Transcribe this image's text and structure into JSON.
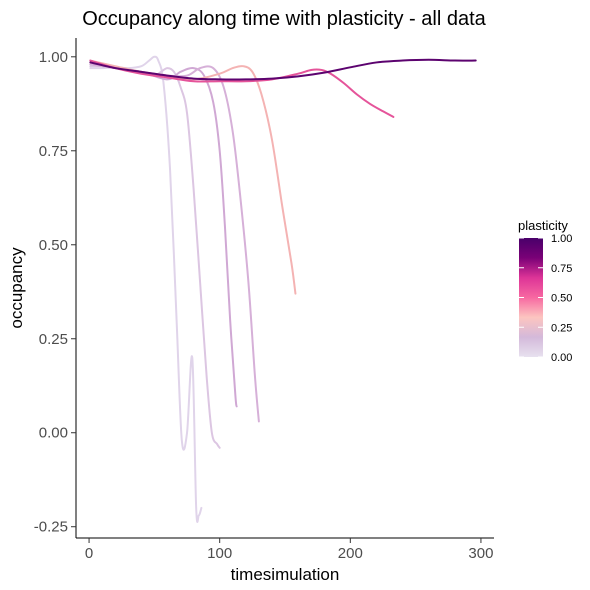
{
  "chart_data": {
    "type": "line",
    "title": "Occupancy along time with plasticity - all data",
    "xlabel": "timesimulation",
    "ylabel": "occupancy",
    "xlim": [
      -10,
      310
    ],
    "ylim": [
      -0.28,
      1.05
    ],
    "x_ticks": [
      0,
      100,
      200,
      300
    ],
    "y_ticks": [
      -0.25,
      0.0,
      0.25,
      0.5,
      0.75,
      1.0
    ],
    "y_tick_labels": [
      "-0.25",
      "0.00",
      "0.25",
      "0.50",
      "0.75",
      "1.00"
    ],
    "grid": false,
    "legend": {
      "title": "plasticity",
      "position": "right",
      "type": "colorbar",
      "range": [
        0,
        1
      ],
      "ticks": [
        0,
        0.25,
        0.5,
        0.75,
        1.0
      ],
      "tick_labels": [
        "0.00",
        "0.25",
        "0.50",
        "0.75",
        "1.00"
      ],
      "colors": [
        "#E7E1EF",
        "#D4B9DA",
        "#FCC5C0",
        "#F768A1",
        "#DD3497",
        "#7A0177",
        "#49006A"
      ]
    },
    "series": [
      {
        "plasticity": 0.1,
        "color": "#E0D4EA",
        "x": [
          1,
          10,
          20,
          30,
          40,
          46,
          50,
          53,
          57,
          62,
          67,
          71,
          75,
          79,
          82,
          84,
          86
        ],
        "y": [
          0.97,
          0.97,
          0.972,
          0.97,
          0.975,
          0.99,
          1.0,
          0.99,
          0.93,
          0.7,
          0.3,
          -0.02,
          0.0,
          0.2,
          -0.2,
          -0.22,
          -0.2
        ]
      },
      {
        "plasticity": 0.2,
        "color": "#DCC6E2",
        "x": [
          1,
          10,
          20,
          30,
          40,
          50,
          55,
          60,
          65,
          70,
          75,
          80,
          85,
          90,
          94,
          98,
          100
        ],
        "y": [
          0.975,
          0.975,
          0.97,
          0.965,
          0.96,
          0.95,
          0.96,
          0.97,
          0.96,
          0.92,
          0.85,
          0.65,
          0.4,
          0.15,
          0.0,
          -0.03,
          -0.04
        ]
      },
      {
        "plasticity": 0.3,
        "color": "#D0A8D4",
        "x": [
          1,
          20,
          40,
          60,
          70,
          80,
          88,
          95,
          100,
          104,
          108,
          112,
          113
        ],
        "y": [
          0.98,
          0.97,
          0.96,
          0.94,
          0.96,
          0.97,
          0.95,
          0.88,
          0.75,
          0.55,
          0.3,
          0.1,
          0.07
        ]
      },
      {
        "plasticity": 0.35,
        "color": "#D6B0D8",
        "x": [
          1,
          20,
          40,
          60,
          75,
          85,
          95,
          103,
          110,
          116,
          122,
          127,
          130
        ],
        "y": [
          0.98,
          0.97,
          0.96,
          0.95,
          0.95,
          0.97,
          0.97,
          0.92,
          0.8,
          0.62,
          0.4,
          0.15,
          0.03
        ]
      },
      {
        "plasticity": 0.4,
        "color": "#F4B3B3",
        "x": [
          1,
          20,
          40,
          60,
          80,
          100,
          110,
          118,
          125,
          132,
          140,
          148,
          155,
          158
        ],
        "y": [
          0.99,
          0.975,
          0.96,
          0.95,
          0.94,
          0.955,
          0.97,
          0.975,
          0.96,
          0.9,
          0.78,
          0.6,
          0.45,
          0.37
        ]
      },
      {
        "plasticity": 0.6,
        "color": "#E5549A",
        "x": [
          1,
          20,
          40,
          60,
          80,
          100,
          120,
          140,
          160,
          170,
          178,
          185,
          195,
          205,
          215,
          225,
          233
        ],
        "y": [
          0.99,
          0.97,
          0.955,
          0.945,
          0.935,
          0.935,
          0.935,
          0.94,
          0.955,
          0.965,
          0.965,
          0.955,
          0.93,
          0.9,
          0.875,
          0.855,
          0.84
        ]
      },
      {
        "plasticity": 1.0,
        "color": "#5C036F",
        "x": [
          1,
          20,
          40,
          60,
          80,
          100,
          120,
          140,
          160,
          180,
          200,
          220,
          240,
          260,
          280,
          296
        ],
        "y": [
          0.985,
          0.97,
          0.96,
          0.95,
          0.942,
          0.94,
          0.94,
          0.942,
          0.948,
          0.958,
          0.972,
          0.985,
          0.99,
          0.992,
          0.99,
          0.99
        ]
      }
    ]
  }
}
